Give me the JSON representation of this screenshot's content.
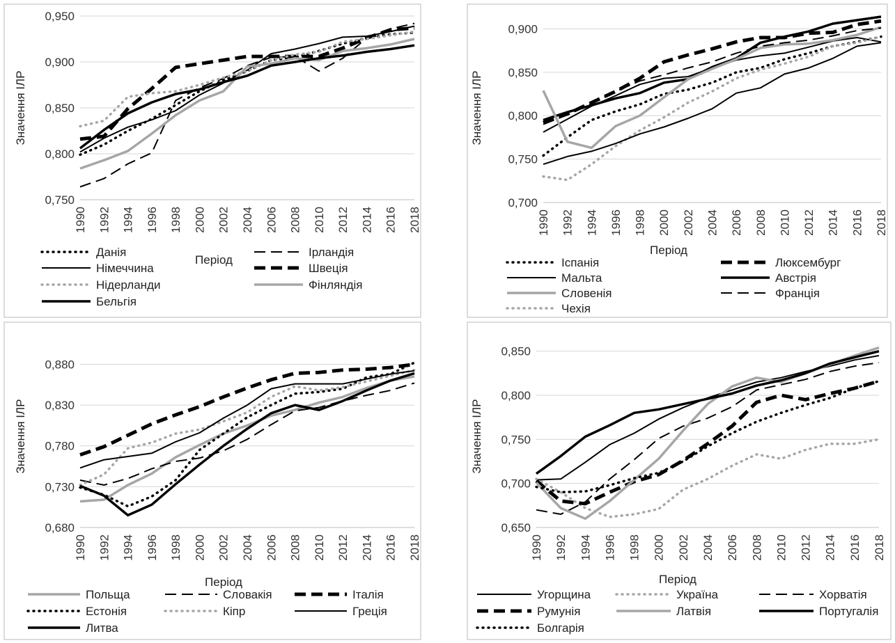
{
  "chart_data": [
    {
      "type": "line",
      "xlabel": "Період",
      "ylabel": "Значення ІЛР",
      "ylim": [
        0.75,
        0.95
      ],
      "yticks": [
        "0,750",
        "0,800",
        "0,850",
        "0,900",
        "0,950"
      ],
      "x": [
        1990,
        1992,
        1994,
        1996,
        1998,
        2000,
        2002,
        2004,
        2006,
        2008,
        2010,
        2012,
        2014,
        2016,
        2018
      ],
      "legend_position": "bottom",
      "grid": true,
      "series": [
        {
          "name": "Данія",
          "values": [
            0.799,
            0.81,
            0.825,
            0.838,
            0.853,
            0.868,
            0.88,
            0.89,
            0.902,
            0.905,
            0.912,
            0.92,
            0.926,
            0.93,
            0.932
          ]
        },
        {
          "name": "Ірландія",
          "values": [
            0.764,
            0.773,
            0.789,
            0.801,
            0.858,
            0.872,
            0.882,
            0.896,
            0.905,
            0.906,
            0.89,
            0.904,
            0.926,
            0.936,
            0.942
          ]
        },
        {
          "name": "Німеччина",
          "values": [
            0.802,
            0.817,
            0.829,
            0.837,
            0.847,
            0.864,
            0.877,
            0.891,
            0.909,
            0.914,
            0.92,
            0.927,
            0.928,
            0.933,
            0.939
          ]
        },
        {
          "name": "Швеція",
          "values": [
            0.816,
            0.819,
            0.849,
            0.871,
            0.894,
            0.898,
            0.902,
            0.906,
            0.906,
            0.906,
            0.906,
            0.915,
            0.926,
            0.935,
            0.937
          ]
        },
        {
          "name": "Нідерланди",
          "values": [
            0.83,
            0.836,
            0.862,
            0.866,
            0.868,
            0.875,
            0.883,
            0.89,
            0.902,
            0.908,
            0.911,
            0.922,
            0.925,
            0.929,
            0.933
          ]
        },
        {
          "name": "Фінляндія",
          "values": [
            0.784,
            0.793,
            0.803,
            0.822,
            0.842,
            0.858,
            0.868,
            0.895,
            0.898,
            0.904,
            0.902,
            0.912,
            0.915,
            0.919,
            0.925
          ]
        },
        {
          "name": "Бельгія",
          "values": [
            0.806,
            0.826,
            0.844,
            0.856,
            0.865,
            0.87,
            0.878,
            0.885,
            0.896,
            0.9,
            0.904,
            0.907,
            0.911,
            0.914,
            0.918
          ]
        }
      ]
    },
    {
      "type": "line",
      "xlabel": "Період",
      "ylabel": "Значення ІЛР",
      "ylim": [
        0.7,
        0.91
      ],
      "yticks": [
        "0,700",
        "0,750",
        "0,800",
        "0,850",
        "0,900"
      ],
      "x": [
        1990,
        1992,
        1994,
        1996,
        1998,
        2000,
        2002,
        2004,
        2006,
        2008,
        2010,
        2012,
        2014,
        2016,
        2018
      ],
      "legend_position": "bottom",
      "grid": true,
      "series": [
        {
          "name": "Іспанія",
          "values": [
            0.754,
            0.775,
            0.795,
            0.805,
            0.813,
            0.825,
            0.83,
            0.838,
            0.85,
            0.855,
            0.865,
            0.872,
            0.88,
            0.885,
            0.891
          ]
        },
        {
          "name": "Люксембург",
          "values": [
            0.792,
            0.802,
            0.815,
            0.828,
            0.843,
            0.862,
            0.87,
            0.877,
            0.885,
            0.89,
            0.89,
            0.895,
            0.896,
            0.905,
            0.909
          ]
        },
        {
          "name": "Мальта",
          "values": [
            0.781,
            0.796,
            0.811,
            0.823,
            0.836,
            0.843,
            0.845,
            0.855,
            0.864,
            0.869,
            0.872,
            0.879,
            0.886,
            0.89,
            0.885
          ]
        },
        {
          "name": "Австрія",
          "values": [
            0.795,
            0.804,
            0.812,
            0.82,
            0.826,
            0.838,
            0.842,
            0.856,
            0.866,
            0.884,
            0.891,
            0.897,
            0.906,
            0.91,
            0.914
          ]
        },
        {
          "name": "Словенія",
          "values": [
            0.829,
            0.77,
            0.763,
            0.788,
            0.8,
            0.821,
            0.842,
            0.854,
            0.865,
            0.878,
            0.882,
            0.883,
            0.887,
            0.893,
            0.902
          ]
        },
        {
          "name": "Франція",
          "values": [
            0.79,
            0.801,
            0.814,
            0.828,
            0.84,
            0.847,
            0.855,
            0.862,
            0.872,
            0.88,
            0.884,
            0.887,
            0.892,
            0.898,
            0.901
          ]
        },
        {
          "name": "Чехія",
          "values": [
            0.73,
            0.726,
            0.744,
            0.765,
            0.783,
            0.798,
            0.815,
            0.828,
            0.843,
            0.853,
            0.86,
            0.868,
            0.88,
            0.884,
            0.891
          ]
        },
        {
          "name": "",
          "values": [
            0.744,
            0.753,
            0.759,
            0.768,
            0.779,
            0.787,
            0.797,
            0.808,
            0.826,
            0.832,
            0.848,
            0.855,
            0.866,
            0.88,
            0.884
          ]
        }
      ]
    },
    {
      "type": "line",
      "xlabel": "Період",
      "ylabel": "Значення ІЛР",
      "ylim": [
        0.68,
        0.9
      ],
      "yticks": [
        "0,680",
        "0,730",
        "0,780",
        "0,830",
        "0,880"
      ],
      "x": [
        1990,
        1992,
        1994,
        1996,
        1998,
        2000,
        2002,
        2004,
        2006,
        2008,
        2010,
        2012,
        2014,
        2016,
        2018
      ],
      "legend_position": "bottom",
      "grid": true,
      "series": [
        {
          "name": "Польща",
          "values": [
            0.712,
            0.714,
            0.732,
            0.746,
            0.766,
            0.781,
            0.795,
            0.805,
            0.817,
            0.824,
            0.833,
            0.84,
            0.851,
            0.86,
            0.865
          ]
        },
        {
          "name": "Словакія",
          "values": [
            0.738,
            0.732,
            0.74,
            0.752,
            0.761,
            0.765,
            0.774,
            0.788,
            0.806,
            0.823,
            0.827,
            0.835,
            0.842,
            0.848,
            0.857
          ]
        },
        {
          "name": "Італія",
          "values": [
            0.769,
            0.779,
            0.793,
            0.807,
            0.818,
            0.828,
            0.84,
            0.851,
            0.861,
            0.869,
            0.87,
            0.873,
            0.874,
            0.876,
            0.88
          ]
        },
        {
          "name": "Естонія",
          "values": [
            0.729,
            0.72,
            0.706,
            0.718,
            0.738,
            0.775,
            0.795,
            0.815,
            0.83,
            0.844,
            0.846,
            0.85,
            0.864,
            0.868,
            0.882
          ]
        },
        {
          "name": "Кіпр",
          "values": [
            0.732,
            0.745,
            0.777,
            0.784,
            0.795,
            0.8,
            0.81,
            0.821,
            0.84,
            0.853,
            0.848,
            0.852,
            0.859,
            0.866,
            0.873
          ]
        },
        {
          "name": "Греція",
          "values": [
            0.753,
            0.763,
            0.767,
            0.771,
            0.785,
            0.796,
            0.814,
            0.83,
            0.85,
            0.856,
            0.856,
            0.856,
            0.862,
            0.868,
            0.872
          ]
        },
        {
          "name": "Литва",
          "values": [
            0.731,
            0.719,
            0.695,
            0.708,
            0.733,
            0.757,
            0.78,
            0.801,
            0.82,
            0.83,
            0.824,
            0.835,
            0.848,
            0.86,
            0.869
          ]
        }
      ]
    },
    {
      "type": "line",
      "xlabel": "Період",
      "ylabel": "Значення ІЛР",
      "ylim": [
        0.65,
        0.86
      ],
      "yticks": [
        "0,650",
        "0,700",
        "0,750",
        "0,800",
        "0,850"
      ],
      "x": [
        1990,
        1992,
        1994,
        1996,
        1998,
        2000,
        2002,
        2004,
        2006,
        2008,
        2010,
        2012,
        2014,
        2016,
        2018
      ],
      "legend_position": "bottom",
      "grid": true,
      "series": [
        {
          "name": "Угорщина",
          "values": [
            0.704,
            0.705,
            0.724,
            0.744,
            0.757,
            0.773,
            0.786,
            0.797,
            0.806,
            0.815,
            0.82,
            0.827,
            0.833,
            0.84,
            0.845
          ]
        },
        {
          "name": "Україна",
          "values": [
            0.705,
            0.69,
            0.672,
            0.662,
            0.665,
            0.671,
            0.693,
            0.705,
            0.72,
            0.733,
            0.728,
            0.738,
            0.745,
            0.745,
            0.75
          ]
        },
        {
          "name": "Хорватія",
          "values": [
            0.67,
            0.665,
            0.679,
            0.705,
            0.727,
            0.751,
            0.765,
            0.774,
            0.787,
            0.806,
            0.812,
            0.818,
            0.827,
            0.833,
            0.837
          ]
        },
        {
          "name": "Румунія",
          "values": [
            0.703,
            0.68,
            0.677,
            0.69,
            0.702,
            0.71,
            0.726,
            0.745,
            0.765,
            0.792,
            0.8,
            0.795,
            0.802,
            0.808,
            0.816
          ]
        },
        {
          "name": "Латвія",
          "values": [
            0.701,
            0.672,
            0.66,
            0.68,
            0.704,
            0.728,
            0.76,
            0.79,
            0.81,
            0.82,
            0.815,
            0.825,
            0.835,
            0.845,
            0.854
          ]
        },
        {
          "name": "Португалія",
          "values": [
            0.711,
            0.731,
            0.753,
            0.766,
            0.78,
            0.784,
            0.79,
            0.796,
            0.802,
            0.811,
            0.817,
            0.825,
            0.836,
            0.843,
            0.85
          ]
        },
        {
          "name": "Болгарія",
          "values": [
            0.696,
            0.69,
            0.691,
            0.698,
            0.706,
            0.712,
            0.725,
            0.742,
            0.757,
            0.77,
            0.78,
            0.789,
            0.797,
            0.808,
            0.816
          ]
        }
      ]
    }
  ]
}
